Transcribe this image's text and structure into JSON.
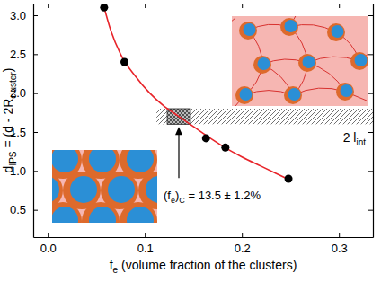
{
  "chart_data": {
    "type": "scatter",
    "x_label": [
      "f",
      "e",
      " (volume fraction of the clusters)"
    ],
    "y_label": [
      "d",
      "IPS",
      " = (d - 2R",
      "cluster",
      ")"
    ],
    "xlim": [
      -0.015,
      0.335
    ],
    "ylim": [
      0.15,
      3.15
    ],
    "xticks": [
      {
        "value": 0,
        "label": "0.0"
      },
      0.1,
      0.2,
      0.3
    ],
    "yticks": [
      0.5,
      {
        "value": 1,
        "label": "1.0"
      },
      1.5,
      {
        "value": 2,
        "label": "2.0"
      },
      2.5,
      {
        "value": 3,
        "label": "3.0"
      }
    ],
    "series": [
      {
        "type": "line",
        "color": "#e8242a",
        "line_style": "solid",
        "x": [
          0.057,
          0.065,
          0.075,
          0.09,
          0.105,
          0.12,
          0.135,
          0.15,
          0.165,
          0.18,
          0.2,
          0.22,
          0.25
        ],
        "values": [
          3.15,
          2.8,
          2.5,
          2.22,
          2.0,
          1.83,
          1.7,
          1.57,
          1.44,
          1.32,
          1.18,
          1.06,
          0.88
        ]
      },
      {
        "type": "scatter",
        "color": "#000000",
        "marker": "circle",
        "x": [
          0.058,
          0.079,
          0.163,
          0.183,
          0.248
        ],
        "values": [
          3.1,
          2.4,
          1.42,
          1.3,
          0.9
        ]
      }
    ],
    "band": {
      "label": [
        "2 l",
        "int"
      ],
      "x": [
        0.112,
        0.335
      ],
      "y": [
        1.6,
        1.8
      ]
    },
    "critical": {
      "label": [
        "(f",
        "e",
        ")",
        "C",
        " = 13.5 ± 1.2%"
      ],
      "x": [
        0.123,
        0.147
      ],
      "y": [
        1.6,
        1.8
      ]
    }
  }
}
